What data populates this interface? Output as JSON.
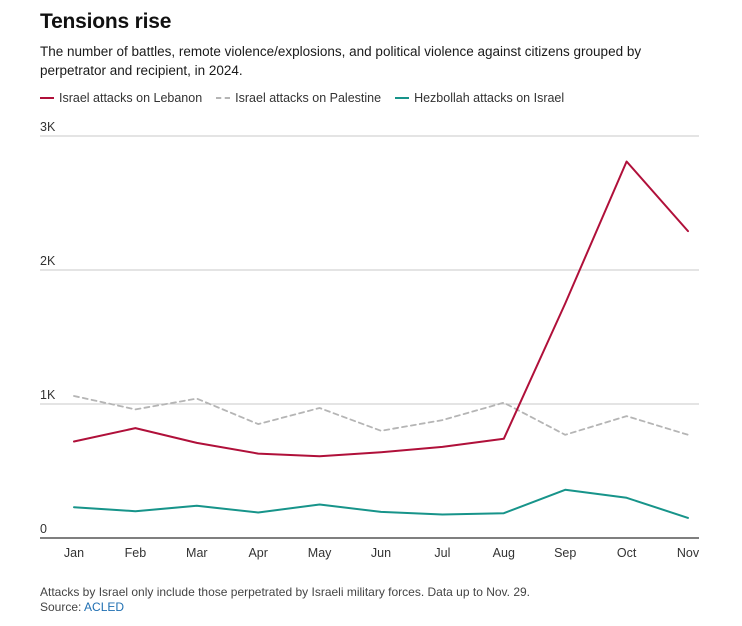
{
  "header": {
    "title": "Tensions rise",
    "subtitle": "The number of battles, remote violence/explosions, and political violence against citizens grouped by perpetrator and recipient, in 2024."
  },
  "legend": [
    {
      "label": "Israel attacks on Lebanon",
      "color": "#b0103a",
      "style": "solid"
    },
    {
      "label": "Israel attacks on Palestine",
      "color": "#b5b5b5",
      "style": "dashed"
    },
    {
      "label": "Hezbollah attacks on Israel",
      "color": "#17948a",
      "style": "solid"
    }
  ],
  "chart_data": {
    "type": "line",
    "title": "Tensions rise",
    "xlabel": "",
    "ylabel": "",
    "categories": [
      "Jan",
      "Feb",
      "Mar",
      "Apr",
      "May",
      "Jun",
      "Jul",
      "Aug",
      "Sep",
      "Oct",
      "Nov"
    ],
    "ylim": [
      0,
      3000
    ],
    "yticks": [
      {
        "value": 0,
        "label": "0"
      },
      {
        "value": 1000,
        "label": "1K"
      },
      {
        "value": 2000,
        "label": "2K"
      },
      {
        "value": 3000,
        "label": "3K"
      }
    ],
    "grid": true,
    "series": [
      {
        "name": "Israel attacks on Lebanon",
        "color": "#b0103a",
        "style": "solid",
        "values": [
          720,
          820,
          710,
          630,
          610,
          640,
          680,
          740,
          1750,
          2810,
          2290
        ]
      },
      {
        "name": "Israel attacks on Palestine",
        "color": "#b5b5b5",
        "style": "dashed",
        "values": [
          1060,
          960,
          1040,
          850,
          970,
          800,
          880,
          1010,
          770,
          910,
          770
        ]
      },
      {
        "name": "Hezbollah attacks on Israel",
        "color": "#17948a",
        "style": "solid",
        "values": [
          230,
          200,
          240,
          190,
          250,
          195,
          175,
          185,
          360,
          300,
          150
        ]
      }
    ]
  },
  "footer": {
    "note": "Attacks by Israel only include those perpetrated by Israeli military forces. Data up to Nov. 29.",
    "source_label": "Source:",
    "source_name": "ACLED"
  }
}
